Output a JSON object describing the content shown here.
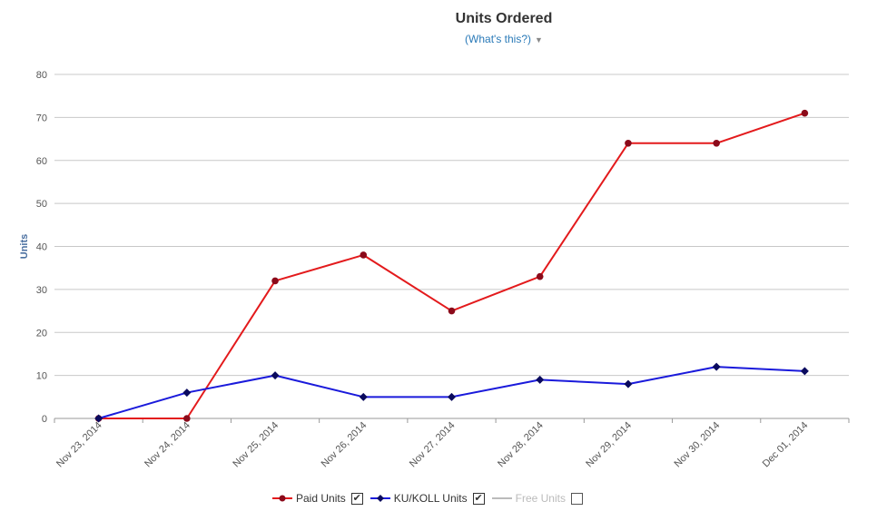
{
  "header": {
    "title": "Units Ordered",
    "help_link": "(What's this?)"
  },
  "legend": {
    "items": [
      {
        "label": "Paid Units",
        "checked": true,
        "color": "#e31a1c",
        "marker_color": "#8b0a1a",
        "enabled": true
      },
      {
        "label": "KU/KOLL Units",
        "checked": true,
        "color": "#1a1adb",
        "marker_color": "#0a0a5e",
        "enabled": true
      },
      {
        "label": "Free Units",
        "checked": false,
        "color": "#bbbbbb",
        "enabled": false
      }
    ]
  },
  "chart_data": {
    "type": "line",
    "title": "Units Ordered",
    "xlabel": "",
    "ylabel": "Units",
    "ylim": [
      0,
      80
    ],
    "yticks": [
      0,
      10,
      20,
      30,
      40,
      50,
      60,
      70,
      80
    ],
    "grid": true,
    "legend_position": "bottom",
    "categories": [
      "Nov 23, 2014",
      "Nov 24, 2014",
      "Nov 25, 2014",
      "Nov 26, 2014",
      "Nov 27, 2014",
      "Nov 28, 2014",
      "Nov 29, 2014",
      "Nov 30, 2014",
      "Dec 01, 2014"
    ],
    "series": [
      {
        "name": "Paid Units",
        "values": [
          0,
          0,
          32,
          38,
          25,
          33,
          64,
          64,
          71
        ],
        "color": "#e31a1c",
        "marker": "circle"
      },
      {
        "name": "KU/KOLL Units",
        "values": [
          0,
          6,
          10,
          5,
          5,
          9,
          8,
          12,
          11
        ],
        "color": "#1a1adb",
        "marker": "diamond"
      }
    ]
  }
}
